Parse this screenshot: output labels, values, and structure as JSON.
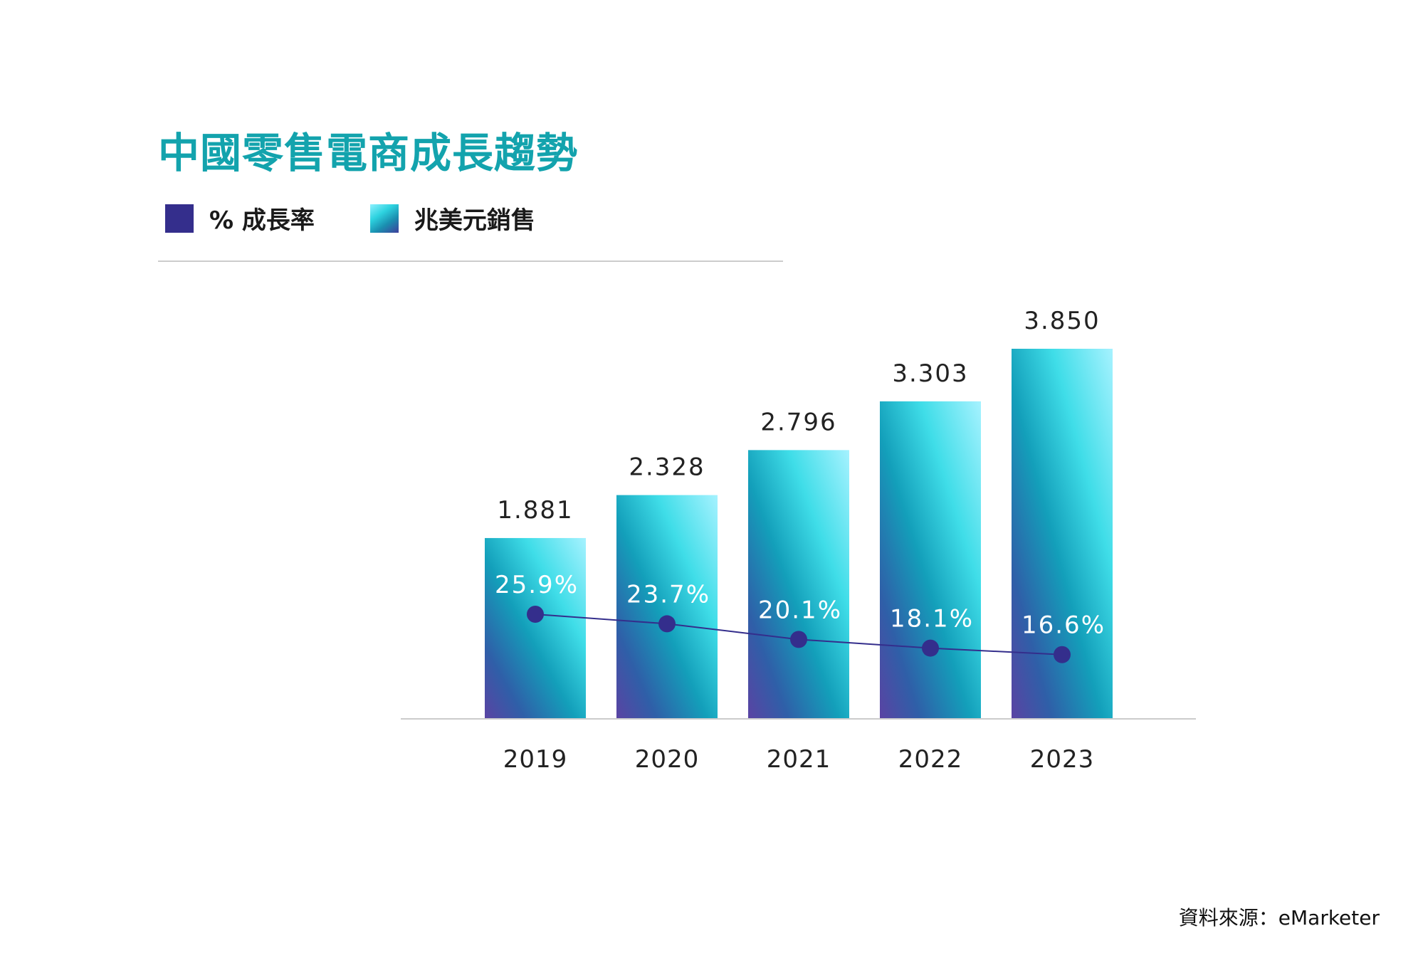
{
  "title": "中國零售電商成長趨勢",
  "legend": {
    "rate_label": "% 成長率",
    "sales_label": "兆美元銷售"
  },
  "source": "資料來源：eMarketer",
  "colors": {
    "title": "#13a3ad",
    "rate": "#342e8c",
    "bar_top": "#a6f2ff",
    "bar_mid": "#1ab8c8",
    "bar_bottom": "#5a43a3"
  },
  "chart_data": {
    "type": "bar",
    "title": "中國零售電商成長趨勢",
    "categories": [
      "2019",
      "2020",
      "2021",
      "2022",
      "2023"
    ],
    "series": [
      {
        "name": "兆美元銷售",
        "type": "bar",
        "values": [
          1.881,
          2.328,
          2.796,
          3.303,
          3.85
        ],
        "labels": [
          "1.881",
          "2.328",
          "2.796",
          "3.303",
          "3.850"
        ]
      },
      {
        "name": "% 成長率",
        "type": "line",
        "values": [
          25.9,
          23.7,
          20.1,
          18.1,
          16.6
        ],
        "labels": [
          "25.9%",
          "23.7%",
          "20.1%",
          "18.1%",
          "16.6%"
        ]
      }
    ],
    "legend": "top-left",
    "grid": false
  }
}
